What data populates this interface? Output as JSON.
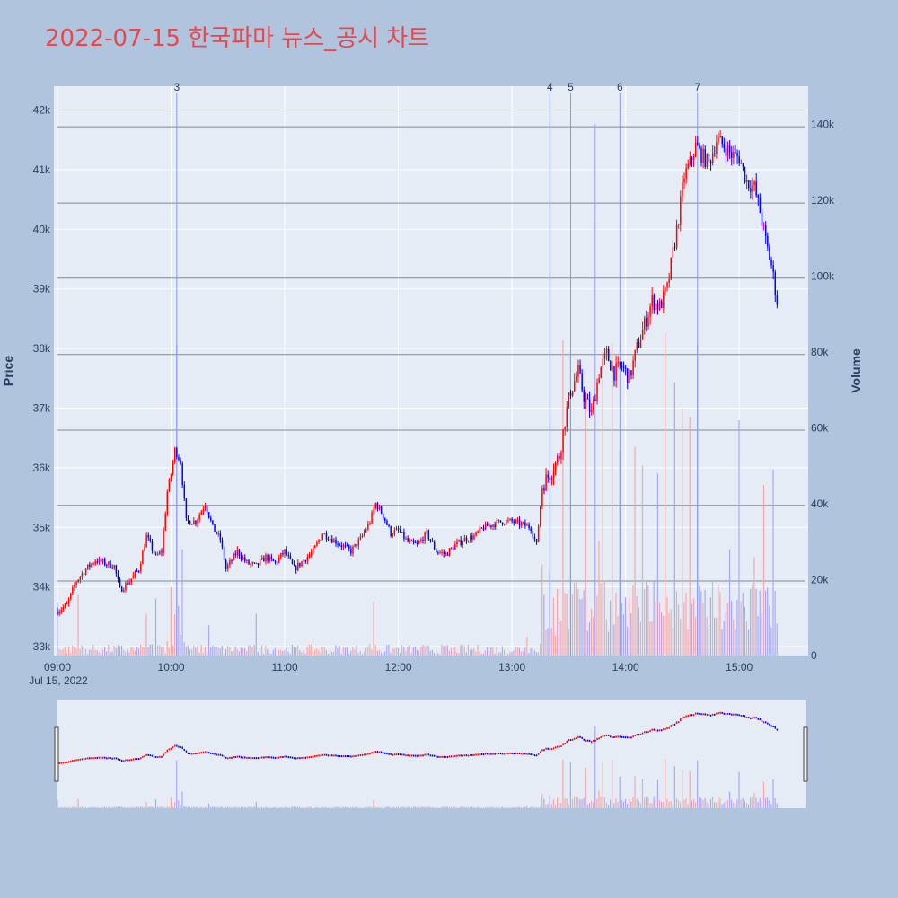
{
  "title": "2022-07-15 한국파마 뉴스_공시 차트",
  "colors": {
    "background": "#b0c4de",
    "plot_bg": "#e5ecf6",
    "up": "#ff0000",
    "down": "#0000ff",
    "up_volume": "#f4a8a8",
    "down_volume": "#a8a8f4",
    "title": "#e8474c",
    "marker_line": "#8899ee",
    "hline": "#7f8a99"
  },
  "chart_data": {
    "type": "candlestick",
    "date_label": "Jul 15, 2022",
    "xlabel": "",
    "ylabel": "Price",
    "y2label": "Volume",
    "x_ticks": [
      "09:00",
      "10:00",
      "11:00",
      "12:00",
      "13:00",
      "14:00",
      "15:00"
    ],
    "y_ticks": [
      "33k",
      "34k",
      "35k",
      "36k",
      "37k",
      "38k",
      "39k",
      "40k",
      "41k",
      "42k"
    ],
    "y2_ticks": [
      "0",
      "20k",
      "40k",
      "60k",
      "80k",
      "100k",
      "120k",
      "140k"
    ],
    "ylim": [
      32850,
      42400
    ],
    "y2lim": [
      0,
      150000
    ],
    "xrange_minutes": [
      "09:00",
      "15:30"
    ],
    "horizontal_lines": [
      34100,
      35370,
      36630,
      37900,
      39180,
      40440,
      41720
    ],
    "news_markers": [
      {
        "label": "3",
        "time": "10:03"
      },
      {
        "label": "4",
        "time": "13:20"
      },
      {
        "label": "5",
        "time": "13:31"
      },
      {
        "label": "6",
        "time": "13:57"
      },
      {
        "label": "7",
        "time": "14:38"
      }
    ],
    "price_path": [
      [
        "09:00",
        33600
      ],
      [
        "09:05",
        33700
      ],
      [
        "09:10",
        34100
      ],
      [
        "09:15",
        34300
      ],
      [
        "09:20",
        34450
      ],
      [
        "09:25",
        34400
      ],
      [
        "09:30",
        34350
      ],
      [
        "09:33",
        33950
      ],
      [
        "09:38",
        34100
      ],
      [
        "09:43",
        34300
      ],
      [
        "09:47",
        34850
      ],
      [
        "09:52",
        34500
      ],
      [
        "09:55",
        34600
      ],
      [
        "09:58",
        35600
      ],
      [
        "10:00",
        35900
      ],
      [
        "10:02",
        36300
      ],
      [
        "10:05",
        36100
      ],
      [
        "10:08",
        35100
      ],
      [
        "10:13",
        35100
      ],
      [
        "10:18",
        35400
      ],
      [
        "10:22",
        35000
      ],
      [
        "10:26",
        34800
      ],
      [
        "10:29",
        34300
      ],
      [
        "10:35",
        34600
      ],
      [
        "10:40",
        34400
      ],
      [
        "10:45",
        34350
      ],
      [
        "10:50",
        34500
      ],
      [
        "10:55",
        34400
      ],
      [
        "11:00",
        34600
      ],
      [
        "11:05",
        34300
      ],
      [
        "11:10",
        34450
      ],
      [
        "11:15",
        34600
      ],
      [
        "11:20",
        34900
      ],
      [
        "11:25",
        34800
      ],
      [
        "11:30",
        34700
      ],
      [
        "11:35",
        34600
      ],
      [
        "11:40",
        34800
      ],
      [
        "11:45",
        35100
      ],
      [
        "11:48",
        35400
      ],
      [
        "11:52",
        35200
      ],
      [
        "11:56",
        34900
      ],
      [
        "12:00",
        34950
      ],
      [
        "12:05",
        34750
      ],
      [
        "12:10",
        34700
      ],
      [
        "12:15",
        34900
      ],
      [
        "12:20",
        34600
      ],
      [
        "12:25",
        34550
      ],
      [
        "12:30",
        34700
      ],
      [
        "12:35",
        34800
      ],
      [
        "12:40",
        34850
      ],
      [
        "12:45",
        35000
      ],
      [
        "12:50",
        35050
      ],
      [
        "12:55",
        35100
      ],
      [
        "13:00",
        35100
      ],
      [
        "13:05",
        35050
      ],
      [
        "13:10",
        35000
      ],
      [
        "13:13",
        34700
      ],
      [
        "13:16",
        35700
      ],
      [
        "13:20",
        35900
      ],
      [
        "13:25",
        36200
      ],
      [
        "13:28",
        36800
      ],
      [
        "13:31",
        37300
      ],
      [
        "13:35",
        37600
      ],
      [
        "13:38",
        37200
      ],
      [
        "13:42",
        36900
      ],
      [
        "13:46",
        37600
      ],
      [
        "13:50",
        37900
      ],
      [
        "13:54",
        37600
      ],
      [
        "13:58",
        37700
      ],
      [
        "14:02",
        37500
      ],
      [
        "14:06",
        38000
      ],
      [
        "14:10",
        38400
      ],
      [
        "14:14",
        38800
      ],
      [
        "14:18",
        38700
      ],
      [
        "14:22",
        39000
      ],
      [
        "14:25",
        39600
      ],
      [
        "14:28",
        40200
      ],
      [
        "14:31",
        40900
      ],
      [
        "14:34",
        41100
      ],
      [
        "14:37",
        41400
      ],
      [
        "14:40",
        41250
      ],
      [
        "14:44",
        41100
      ],
      [
        "14:48",
        41500
      ],
      [
        "14:52",
        41400
      ],
      [
        "14:56",
        41250
      ],
      [
        "15:00",
        41200
      ],
      [
        "15:04",
        40800
      ],
      [
        "15:08",
        40700
      ],
      [
        "15:11",
        40300
      ],
      [
        "15:14",
        39800
      ],
      [
        "15:17",
        39400
      ],
      [
        "15:19",
        39000
      ],
      [
        "15:20",
        38800
      ]
    ],
    "volume_bursts": [
      [
        "09:00",
        14000
      ],
      [
        "09:11",
        16000
      ],
      [
        "09:47",
        11000
      ],
      [
        "09:52",
        15000
      ],
      [
        "10:00",
        18000
      ],
      [
        "10:03",
        82000
      ],
      [
        "10:06",
        28000
      ],
      [
        "10:20",
        8000
      ],
      [
        "10:45",
        11000
      ],
      [
        "11:47",
        14000
      ],
      [
        "13:08",
        5000
      ],
      [
        "13:16",
        24000
      ],
      [
        "13:20",
        22000
      ],
      [
        "13:27",
        83000
      ],
      [
        "13:31",
        80000
      ],
      [
        "13:39",
        70000
      ],
      [
        "13:44",
        140000
      ],
      [
        "13:48",
        80000
      ],
      [
        "13:53",
        82000
      ],
      [
        "13:57",
        54000
      ],
      [
        "14:05",
        55000
      ],
      [
        "14:09",
        50000
      ],
      [
        "14:17",
        48000
      ],
      [
        "14:21",
        85000
      ],
      [
        "14:26",
        72000
      ],
      [
        "14:30",
        65000
      ],
      [
        "14:34",
        63000
      ],
      [
        "14:38",
        82000
      ],
      [
        "14:55",
        28000
      ],
      [
        "15:00",
        62000
      ],
      [
        "15:08",
        26000
      ],
      [
        "15:13",
        45000
      ],
      [
        "15:18",
        49000
      ]
    ]
  }
}
